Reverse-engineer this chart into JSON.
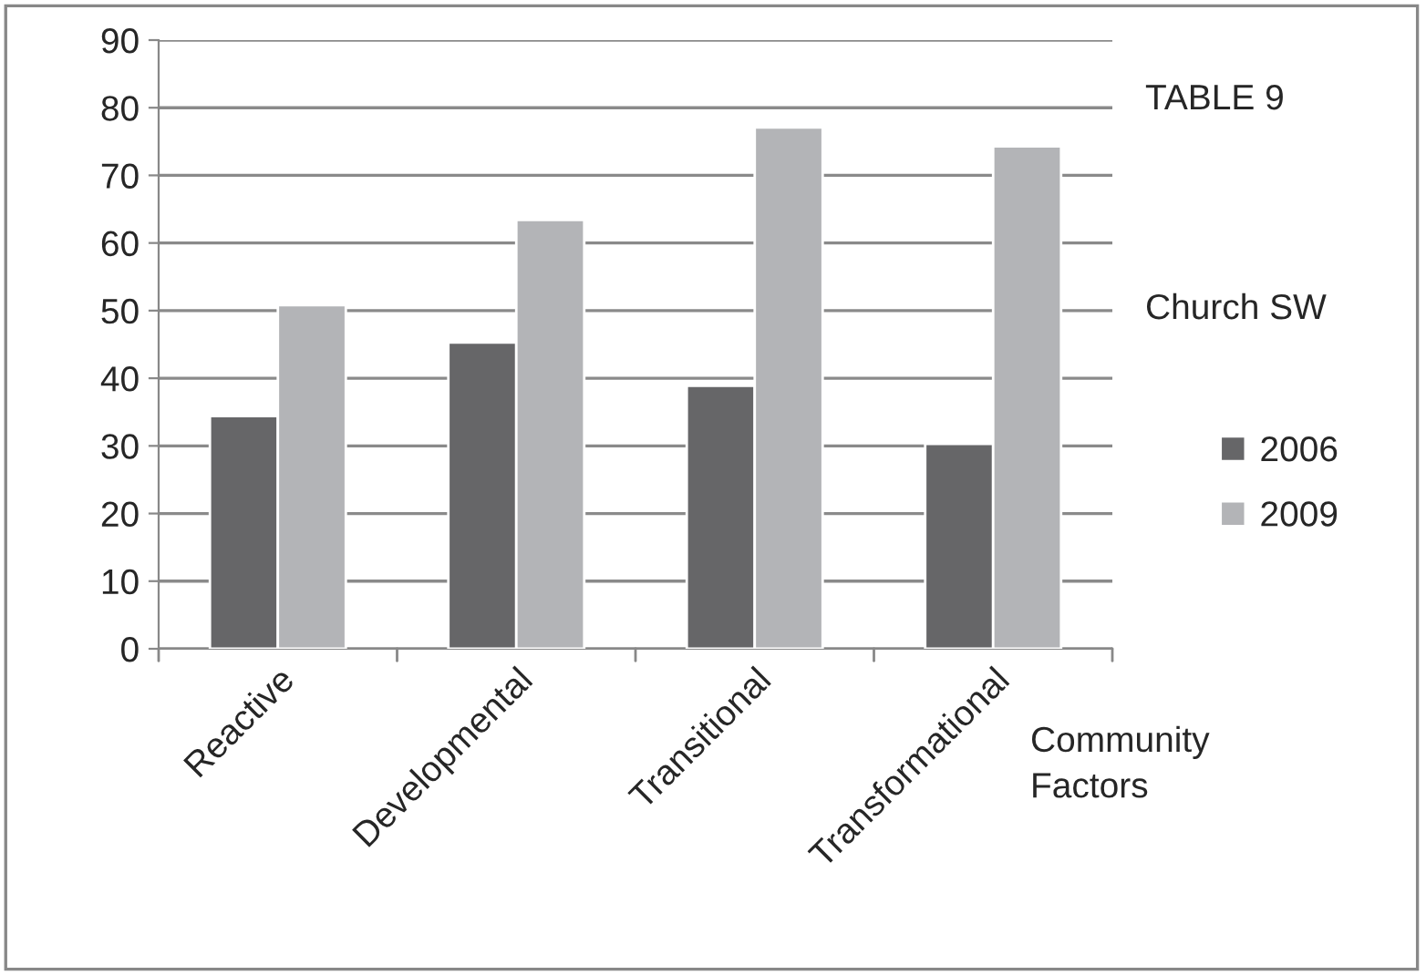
{
  "chart_data": {
    "type": "bar",
    "categories": [
      "Reactive",
      "Developmental",
      "Transitional",
      "Transformational"
    ],
    "series": [
      {
        "name": "2006",
        "color": "#666668",
        "values": [
          34.4,
          45.3,
          38.9,
          30.3
        ]
      },
      {
        "name": "2009",
        "color": "#b3b4b7",
        "values": [
          50.8,
          63.4,
          77.1,
          74.3
        ]
      }
    ],
    "ylim": [
      0,
      90
    ],
    "yticks": [
      0,
      10,
      20,
      30,
      40,
      50,
      60,
      70,
      80,
      90
    ],
    "grid": "y",
    "legend": "right",
    "xlabel": "Community\nFactors",
    "annotations": [
      "TABLE 9",
      "Church SW"
    ]
  }
}
